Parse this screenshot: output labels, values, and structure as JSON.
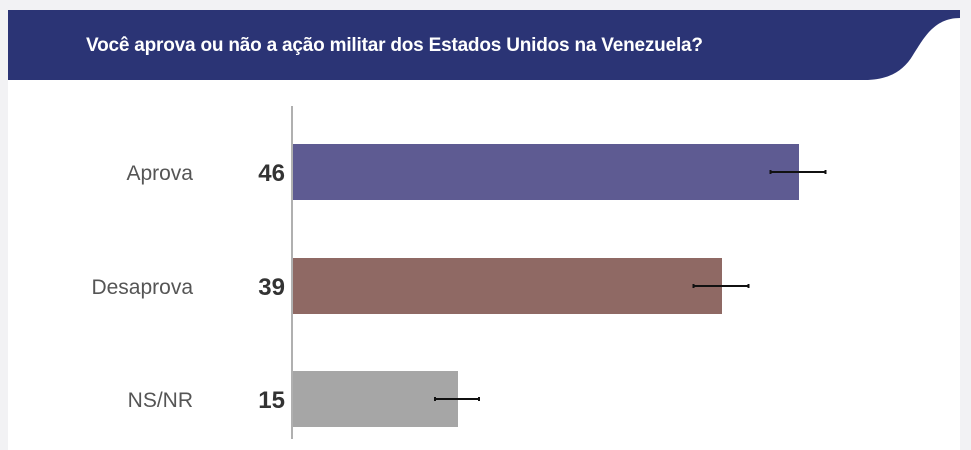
{
  "colors": {
    "header": "#2b3475",
    "axis": "#b0b0b0"
  },
  "chart_data": {
    "type": "bar",
    "orientation": "horizontal",
    "title": "Você aprova ou não a ação militar dos Estados Unidos na Venezuela?",
    "categories": [
      "Aprova",
      "Desaprova",
      "NS/NR"
    ],
    "values": [
      46,
      39,
      15
    ],
    "value_labels": [
      "46",
      "39",
      "15"
    ],
    "error_margin": [
      2.5,
      2.5,
      2
    ],
    "colors": [
      "#5e5b92",
      "#8f6964",
      "#a6a6a6"
    ],
    "xlim": [
      0,
      60
    ],
    "grid": false,
    "xlabel": "",
    "ylabel": ""
  }
}
